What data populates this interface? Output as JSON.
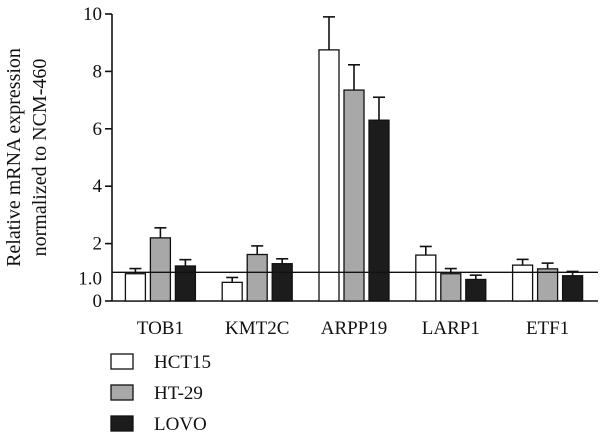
{
  "chart_data": {
    "type": "bar",
    "ylabel_lines": [
      "Relative mRNA expression",
      "normalized to NCM-460"
    ],
    "categories": [
      "TOB1",
      "KMT2C",
      "ARPP19",
      "LARP1",
      "ETF1"
    ],
    "ylim": [
      0,
      10
    ],
    "y_ticks": [
      0,
      2,
      4,
      6,
      8,
      10
    ],
    "reference_line": {
      "y": 1.0,
      "label": "1.0"
    },
    "series": [
      {
        "name": "HCT15",
        "color": "#ffffff",
        "values": [
          0.95,
          0.65,
          8.75,
          1.6,
          1.25
        ],
        "errors": [
          0.18,
          0.17,
          1.15,
          0.3,
          0.2
        ]
      },
      {
        "name": "HT-29",
        "color": "#a8a8a8",
        "values": [
          2.2,
          1.62,
          7.35,
          0.95,
          1.12
        ],
        "errors": [
          0.35,
          0.3,
          0.88,
          0.18,
          0.2
        ]
      },
      {
        "name": "LOVO",
        "color": "#1c1c1c",
        "values": [
          1.22,
          1.3,
          6.3,
          0.75,
          0.88
        ],
        "errors": [
          0.22,
          0.17,
          0.8,
          0.15,
          0.15
        ]
      }
    ]
  }
}
